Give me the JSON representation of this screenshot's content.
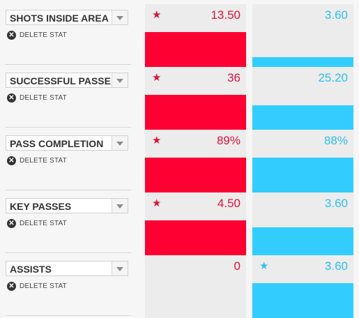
{
  "delete_label": "DELETE STAT",
  "colors": {
    "home": "#ff0033",
    "away": "#33ccff",
    "home_text": "#e0103b",
    "away_text": "#2bbff0"
  },
  "stats": [
    {
      "name": "SHOTS INSIDE AREA",
      "home_value": "13.50",
      "away_value": "3.60",
      "home_fill": 1.0,
      "away_fill": 0.27,
      "home_star": true,
      "away_star": false
    },
    {
      "name": "SUCCESSFUL PASSES",
      "home_value": "36",
      "away_value": "25.20",
      "home_fill": 1.0,
      "away_fill": 0.7,
      "home_star": true,
      "away_star": false
    },
    {
      "name": "PASS COMPLETION",
      "home_value": "89%",
      "away_value": "88%",
      "home_fill": 1.0,
      "away_fill": 0.99,
      "home_star": true,
      "away_star": false
    },
    {
      "name": "KEY PASSES",
      "home_value": "4.50",
      "away_value": "3.60",
      "home_fill": 1.0,
      "away_fill": 0.8,
      "home_star": true,
      "away_star": false
    },
    {
      "name": "ASSISTS",
      "home_value": "0",
      "away_value": "3.60",
      "home_fill": 0.0,
      "away_fill": 1.0,
      "home_star": false,
      "away_star": true
    }
  ]
}
